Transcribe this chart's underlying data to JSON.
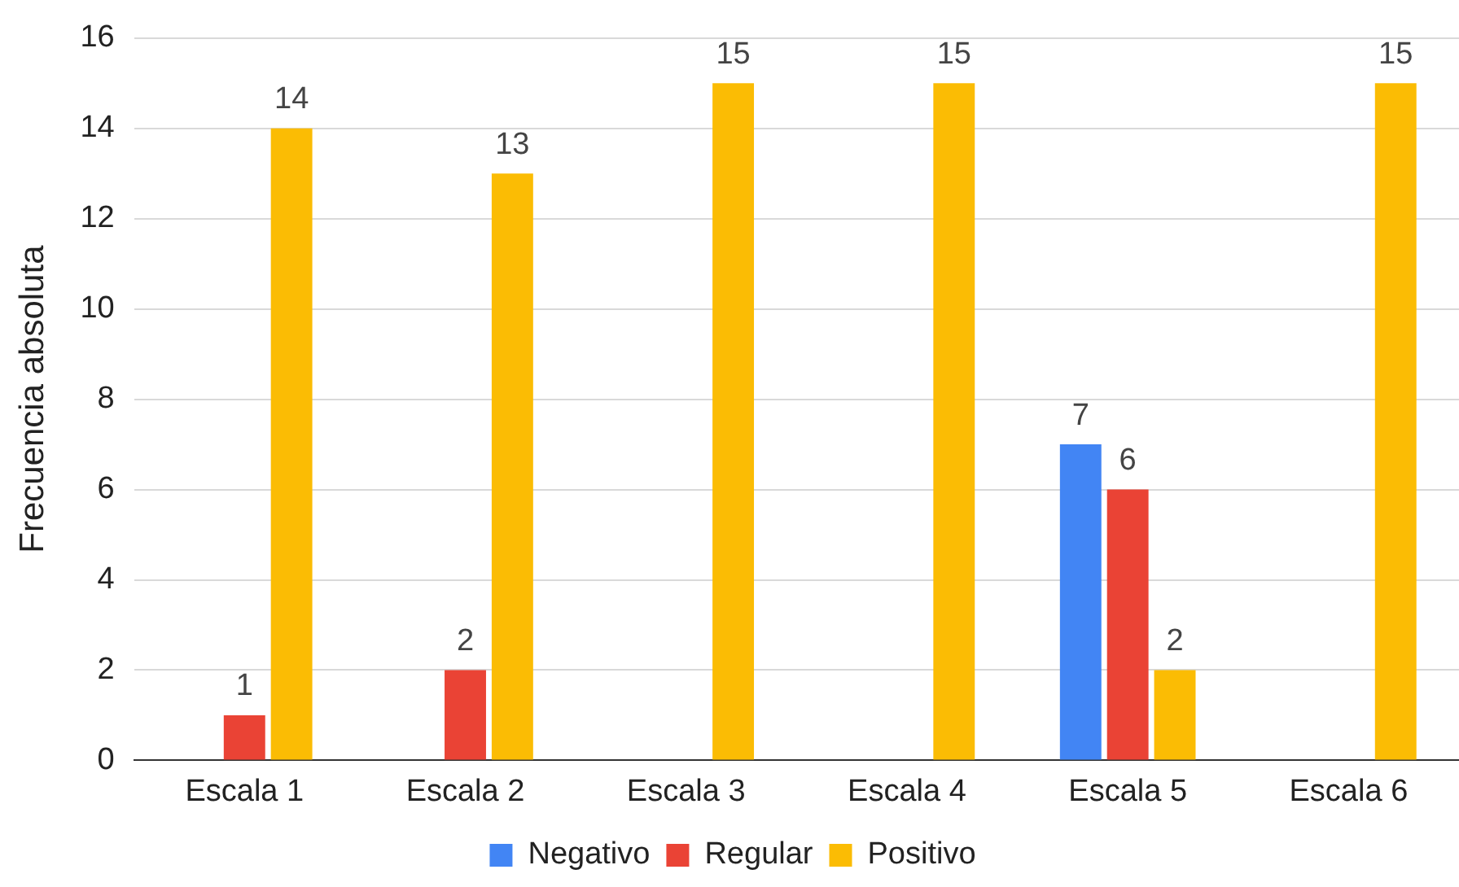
{
  "chart_data": {
    "type": "bar",
    "ylabel": "Frecuencia absoluta",
    "categories": [
      "Escala 1",
      "Escala 2",
      "Escala 3",
      "Escala 4",
      "Escala 5",
      "Escala 6"
    ],
    "series": [
      {
        "name": "Negativo",
        "color": "#4285f4",
        "values": [
          null,
          null,
          null,
          null,
          7,
          null
        ]
      },
      {
        "name": "Regular",
        "color": "#ea4335",
        "values": [
          1,
          2,
          null,
          null,
          6,
          null
        ]
      },
      {
        "name": "Positivo",
        "color": "#fbbc04",
        "values": [
          14,
          13,
          15,
          15,
          2,
          15
        ]
      }
    ],
    "ylim": [
      0,
      16
    ],
    "yticks": [
      0,
      2,
      4,
      6,
      8,
      10,
      12,
      14,
      16
    ],
    "grid": "y",
    "legend": "bottom",
    "data_labels": true
  }
}
